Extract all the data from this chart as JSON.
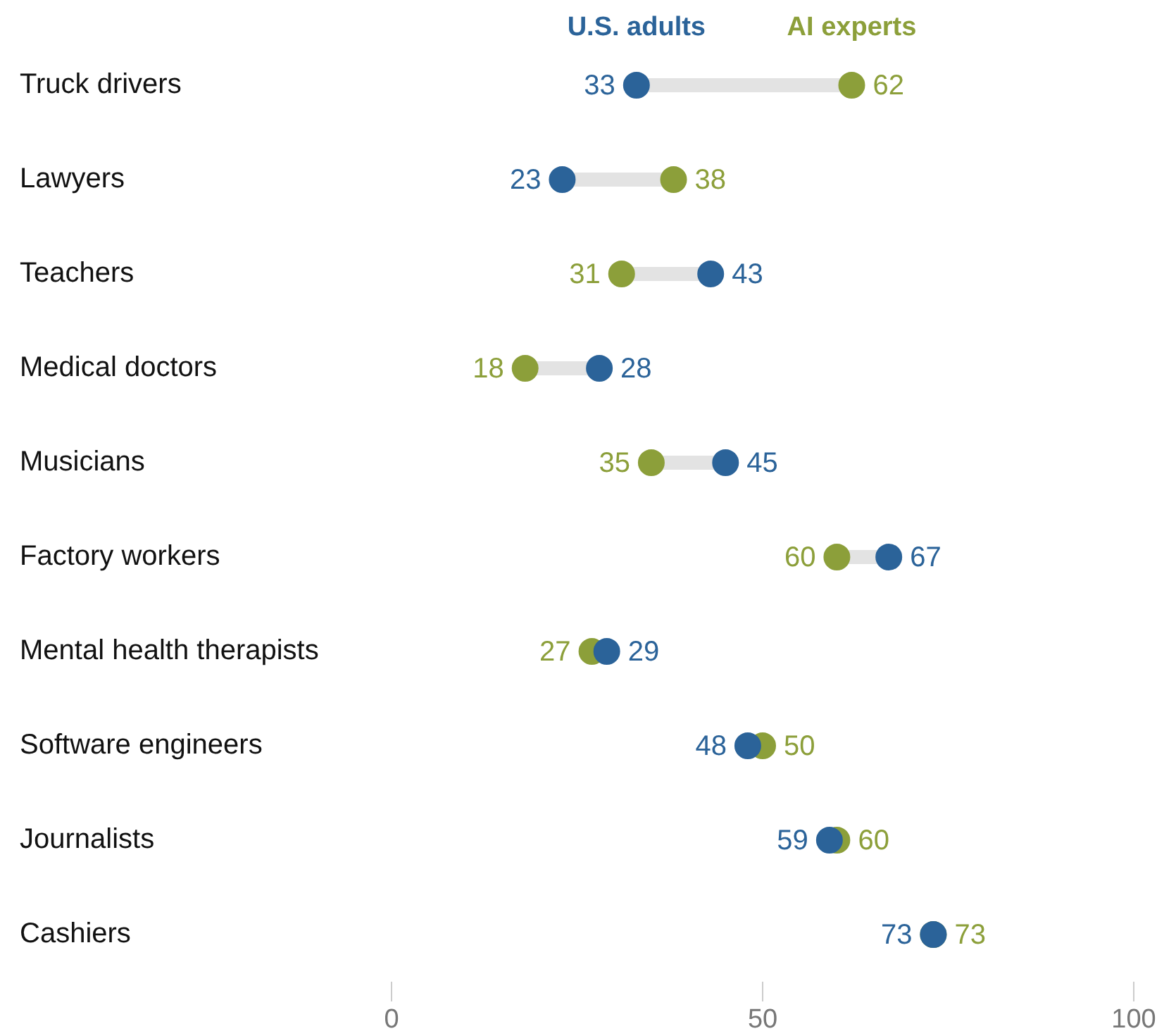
{
  "chart_data": {
    "type": "scatter",
    "orientation": "horizontal",
    "categories": [
      "Truck drivers",
      "Lawyers",
      "Teachers",
      "Medical doctors",
      "Musicians",
      "Factory workers",
      "Mental health therapists",
      "Software engineers",
      "Journalists",
      "Cashiers"
    ],
    "series": [
      {
        "name": "U.S. adults",
        "color": "#2b6399",
        "values": [
          33,
          23,
          43,
          28,
          45,
          67,
          29,
          48,
          59,
          73
        ]
      },
      {
        "name": "AI experts",
        "color": "#8c9f3a",
        "values": [
          62,
          38,
          31,
          18,
          35,
          60,
          27,
          50,
          60,
          73
        ]
      }
    ],
    "xlim": [
      0,
      100
    ],
    "xticks": [
      0,
      50,
      100
    ],
    "grid": false,
    "legend": "top",
    "marker": "circle",
    "data_labels": true
  }
}
